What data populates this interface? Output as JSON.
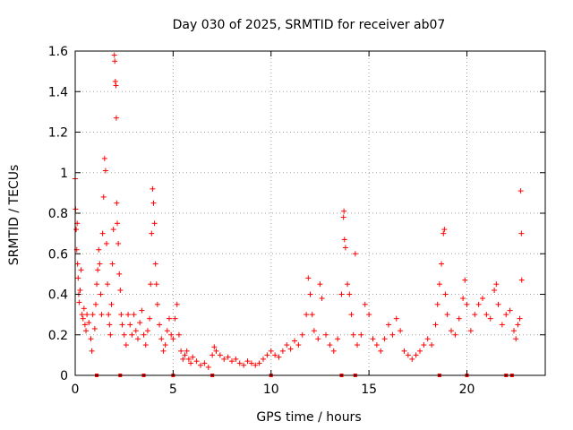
{
  "chart_data": {
    "type": "scatter",
    "title": "Day 030 of 2025, SRMTID for receiver ab07",
    "xlabel": "GPS time / hours",
    "ylabel": "SRMTID / TECUs",
    "xlim": [
      0,
      24
    ],
    "ylim": [
      0,
      1.6
    ],
    "xticks": [
      0,
      5,
      10,
      15,
      20
    ],
    "xtick_labels": [
      "0",
      "5",
      "10",
      "15",
      "20"
    ],
    "yticks": [
      0,
      0.2,
      0.4,
      0.6,
      0.8,
      1,
      1.2,
      1.4,
      1.6
    ],
    "ytick_labels": [
      "0",
      "0.2",
      "0.4",
      "0.6",
      "0.8",
      "1",
      "1.2",
      "1.4",
      "1.6"
    ],
    "grid": true,
    "marker": "+",
    "color": "#ff0000",
    "series": [
      {
        "name": "SRMTID",
        "points": [
          [
            0.0,
            0.97
          ],
          [
            0.02,
            0.82
          ],
          [
            0.05,
            0.72
          ],
          [
            0.08,
            0.62
          ],
          [
            0.1,
            0.75
          ],
          [
            0.12,
            0.55
          ],
          [
            0.15,
            0.48
          ],
          [
            0.18,
            0.4
          ],
          [
            0.2,
            0.36
          ],
          [
            0.25,
            0.42
          ],
          [
            0.3,
            0.52
          ],
          [
            0.35,
            0.3
          ],
          [
            0.4,
            0.28
          ],
          [
            0.45,
            0.33
          ],
          [
            0.5,
            0.25
          ],
          [
            0.55,
            0.22
          ],
          [
            0.6,
            0.3
          ],
          [
            0.7,
            0.26
          ],
          [
            0.8,
            0.18
          ],
          [
            0.85,
            0.12
          ],
          [
            0.9,
            0.3
          ],
          [
            1.0,
            0.23
          ],
          [
            1.05,
            0.35
          ],
          [
            1.1,
            0.45
          ],
          [
            1.15,
            0.52
          ],
          [
            1.2,
            0.62
          ],
          [
            1.25,
            0.55
          ],
          [
            1.3,
            0.4
          ],
          [
            1.35,
            0.3
          ],
          [
            1.4,
            0.7
          ],
          [
            1.45,
            0.88
          ],
          [
            1.5,
            1.07
          ],
          [
            1.55,
            1.01
          ],
          [
            1.6,
            0.65
          ],
          [
            1.65,
            0.45
          ],
          [
            1.7,
            0.3
          ],
          [
            1.75,
            0.25
          ],
          [
            1.8,
            0.2
          ],
          [
            1.85,
            0.35
          ],
          [
            1.9,
            0.55
          ],
          [
            1.95,
            0.72
          ],
          [
            2.0,
            1.58
          ],
          [
            2.02,
            1.55
          ],
          [
            2.05,
            1.45
          ],
          [
            2.08,
            1.43
          ],
          [
            2.1,
            1.27
          ],
          [
            2.12,
            0.85
          ],
          [
            2.15,
            0.75
          ],
          [
            2.2,
            0.65
          ],
          [
            2.25,
            0.5
          ],
          [
            2.3,
            0.42
          ],
          [
            2.35,
            0.3
          ],
          [
            2.4,
            0.25
          ],
          [
            2.5,
            0.2
          ],
          [
            2.6,
            0.15
          ],
          [
            2.7,
            0.3
          ],
          [
            2.8,
            0.25
          ],
          [
            2.9,
            0.2
          ],
          [
            3.0,
            0.3
          ],
          [
            3.1,
            0.22
          ],
          [
            3.2,
            0.18
          ],
          [
            3.3,
            0.26
          ],
          [
            3.4,
            0.32
          ],
          [
            3.5,
            0.2
          ],
          [
            3.6,
            0.15
          ],
          [
            3.7,
            0.22
          ],
          [
            3.8,
            0.28
          ],
          [
            3.85,
            0.45
          ],
          [
            3.9,
            0.7
          ],
          [
            3.95,
            0.92
          ],
          [
            4.0,
            0.85
          ],
          [
            4.05,
            0.75
          ],
          [
            4.1,
            0.55
          ],
          [
            4.15,
            0.45
          ],
          [
            4.2,
            0.35
          ],
          [
            4.3,
            0.25
          ],
          [
            4.4,
            0.18
          ],
          [
            4.5,
            0.12
          ],
          [
            4.6,
            0.15
          ],
          [
            4.7,
            0.22
          ],
          [
            4.8,
            0.28
          ],
          [
            4.9,
            0.2
          ],
          [
            5.0,
            0.18
          ],
          [
            5.1,
            0.28
          ],
          [
            5.2,
            0.35
          ],
          [
            5.3,
            0.2
          ],
          [
            5.4,
            0.12
          ],
          [
            5.5,
            0.08
          ],
          [
            5.6,
            0.1
          ],
          [
            5.7,
            0.12
          ],
          [
            5.8,
            0.08
          ],
          [
            5.9,
            0.06
          ],
          [
            6.0,
            0.09
          ],
          [
            6.2,
            0.07
          ],
          [
            6.4,
            0.05
          ],
          [
            6.6,
            0.06
          ],
          [
            6.8,
            0.04
          ],
          [
            7.0,
            0.1
          ],
          [
            7.1,
            0.14
          ],
          [
            7.2,
            0.12
          ],
          [
            7.4,
            0.1
          ],
          [
            7.6,
            0.08
          ],
          [
            7.8,
            0.09
          ],
          [
            8.0,
            0.07
          ],
          [
            8.2,
            0.08
          ],
          [
            8.4,
            0.06
          ],
          [
            8.6,
            0.05
          ],
          [
            8.8,
            0.07
          ],
          [
            9.0,
            0.06
          ],
          [
            9.2,
            0.05
          ],
          [
            9.4,
            0.06
          ],
          [
            9.6,
            0.08
          ],
          [
            9.8,
            0.1
          ],
          [
            10.0,
            0.12
          ],
          [
            10.2,
            0.1
          ],
          [
            10.4,
            0.09
          ],
          [
            10.6,
            0.12
          ],
          [
            10.8,
            0.15
          ],
          [
            11.0,
            0.13
          ],
          [
            11.2,
            0.17
          ],
          [
            11.4,
            0.15
          ],
          [
            11.6,
            0.2
          ],
          [
            11.8,
            0.3
          ],
          [
            11.9,
            0.48
          ],
          [
            12.0,
            0.4
          ],
          [
            12.1,
            0.3
          ],
          [
            12.2,
            0.22
          ],
          [
            12.4,
            0.18
          ],
          [
            12.5,
            0.45
          ],
          [
            12.6,
            0.38
          ],
          [
            12.8,
            0.2
          ],
          [
            13.0,
            0.15
          ],
          [
            13.2,
            0.12
          ],
          [
            13.4,
            0.18
          ],
          [
            13.6,
            0.4
          ],
          [
            13.7,
            0.78
          ],
          [
            13.72,
            0.81
          ],
          [
            13.75,
            0.67
          ],
          [
            13.8,
            0.63
          ],
          [
            13.9,
            0.45
          ],
          [
            14.0,
            0.4
          ],
          [
            14.1,
            0.3
          ],
          [
            14.2,
            0.2
          ],
          [
            14.3,
            0.6
          ],
          [
            14.4,
            0.15
          ],
          [
            14.6,
            0.2
          ],
          [
            14.8,
            0.35
          ],
          [
            15.0,
            0.3
          ],
          [
            15.2,
            0.18
          ],
          [
            15.4,
            0.15
          ],
          [
            15.6,
            0.12
          ],
          [
            15.8,
            0.18
          ],
          [
            16.0,
            0.25
          ],
          [
            16.2,
            0.2
          ],
          [
            16.4,
            0.28
          ],
          [
            16.6,
            0.22
          ],
          [
            16.8,
            0.12
          ],
          [
            17.0,
            0.1
          ],
          [
            17.2,
            0.08
          ],
          [
            17.4,
            0.1
          ],
          [
            17.6,
            0.12
          ],
          [
            17.8,
            0.15
          ],
          [
            18.0,
            0.18
          ],
          [
            18.2,
            0.15
          ],
          [
            18.4,
            0.25
          ],
          [
            18.5,
            0.35
          ],
          [
            18.6,
            0.45
          ],
          [
            18.7,
            0.55
          ],
          [
            18.8,
            0.7
          ],
          [
            18.85,
            0.72
          ],
          [
            18.9,
            0.4
          ],
          [
            19.0,
            0.3
          ],
          [
            19.2,
            0.22
          ],
          [
            19.4,
            0.2
          ],
          [
            19.6,
            0.28
          ],
          [
            19.8,
            0.38
          ],
          [
            19.9,
            0.47
          ],
          [
            20.0,
            0.35
          ],
          [
            20.2,
            0.22
          ],
          [
            20.4,
            0.3
          ],
          [
            20.6,
            0.35
          ],
          [
            20.8,
            0.38
          ],
          [
            21.0,
            0.3
          ],
          [
            21.2,
            0.28
          ],
          [
            21.4,
            0.42
          ],
          [
            21.5,
            0.45
          ],
          [
            21.6,
            0.35
          ],
          [
            21.8,
            0.25
          ],
          [
            22.0,
            0.3
          ],
          [
            22.2,
            0.32
          ],
          [
            22.4,
            0.22
          ],
          [
            22.5,
            0.18
          ],
          [
            22.6,
            0.25
          ],
          [
            22.7,
            0.28
          ],
          [
            22.75,
            0.91
          ],
          [
            22.78,
            0.7
          ],
          [
            22.8,
            0.47
          ]
        ]
      }
    ],
    "zero_markers_x": [
      1.1,
      2.3,
      3.5,
      5.0,
      7.0,
      10.0,
      13.6,
      14.3,
      18.6,
      20.0,
      22.0,
      22.3
    ]
  }
}
